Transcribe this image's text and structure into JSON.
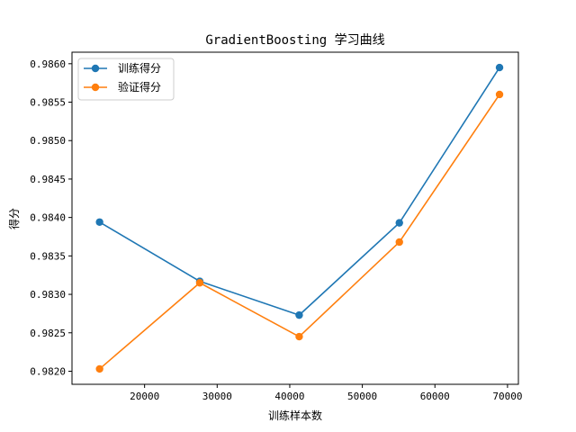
{
  "chart_data": {
    "type": "line",
    "title": "GradientBoosting 学习曲线",
    "xlabel": "训练样本数",
    "ylabel": "得分",
    "x": [
      13800,
      27600,
      41300,
      55100,
      68900
    ],
    "series": [
      {
        "name": "训练得分",
        "color": "#1f77b4",
        "marker": "circle",
        "values": [
          0.98394,
          0.98317,
          0.98273,
          0.98393,
          0.98595
        ]
      },
      {
        "name": "验证得分",
        "color": "#ff7f0e",
        "marker": "circle",
        "values": [
          0.98203,
          0.98315,
          0.98245,
          0.98368,
          0.9856
        ]
      }
    ],
    "xlim": [
      10000,
      71500
    ],
    "ylim": [
      0.98183,
      0.98615
    ],
    "xticks": [
      20000,
      30000,
      40000,
      50000,
      60000,
      70000
    ],
    "xtick_labels": [
      "20000",
      "30000",
      "40000",
      "50000",
      "60000",
      "70000"
    ],
    "yticks": [
      0.982,
      0.9825,
      0.983,
      0.9835,
      0.984,
      0.9845,
      0.985,
      0.9855,
      0.986
    ],
    "ytick_labels": [
      "0.9820",
      "0.9825",
      "0.9830",
      "0.9835",
      "0.9840",
      "0.9845",
      "0.9850",
      "0.9855",
      "0.9860"
    ],
    "grid": false,
    "legend_position": "top-left"
  }
}
